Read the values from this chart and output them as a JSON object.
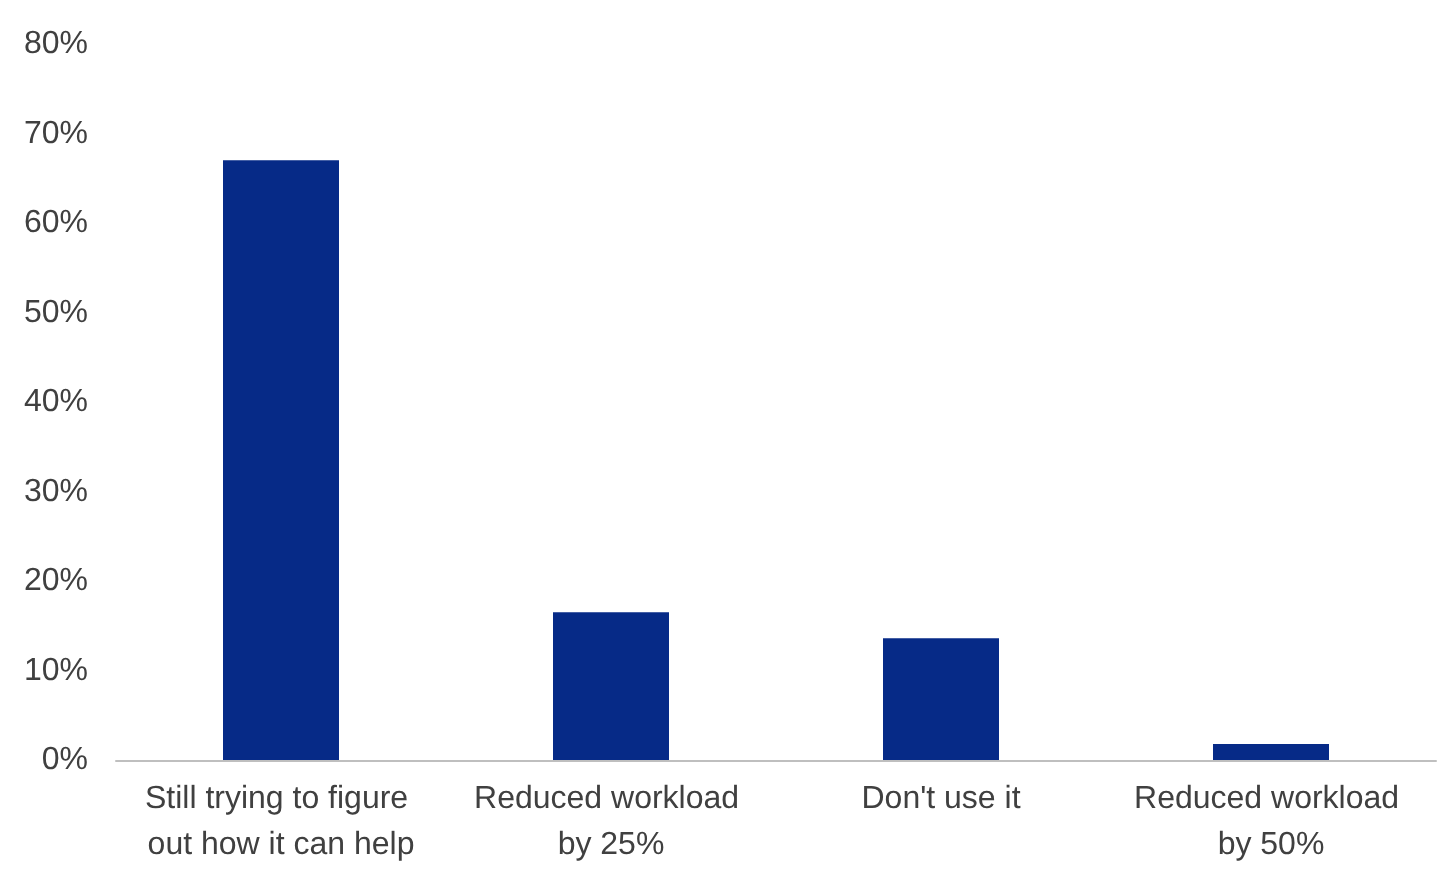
{
  "chart_data": {
    "type": "bar",
    "categories": [
      "Still trying to figure out how it can help",
      "Reduced workload by 25%",
      "Don't use it",
      "Reduced workload by 50%"
    ],
    "values": [
      67,
      16.5,
      13.6,
      1.8
    ],
    "color": "#062a87",
    "ylim": [
      0,
      80
    ],
    "yticks": [
      {
        "value": 0,
        "label": "0%"
      },
      {
        "value": 10,
        "label": "10%"
      },
      {
        "value": 20,
        "label": "20%"
      },
      {
        "value": 30,
        "label": "30%"
      },
      {
        "value": 40,
        "label": "40%"
      },
      {
        "value": 50,
        "label": "50%"
      },
      {
        "value": 60,
        "label": "60%"
      },
      {
        "value": 70,
        "label": "70%"
      },
      {
        "value": 80,
        "label": "80%"
      }
    ],
    "grid": false
  }
}
